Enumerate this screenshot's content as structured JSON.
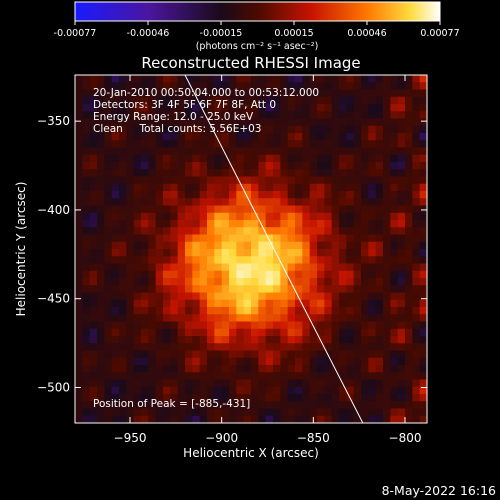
{
  "chart_data": {
    "type": "heatmap",
    "title": "Reconstructed RHESSI Image",
    "xlabel": "Heliocentric X (arcsec)",
    "ylabel": "Heliocentric Y (arcsec)",
    "xlim": [
      -980,
      -788
    ],
    "ylim": [
      -520,
      -324
    ],
    "xticks": [
      -950,
      -900,
      -850,
      -800
    ],
    "yticks": [
      -350,
      -400,
      -450,
      -500
    ],
    "colorbar": {
      "min": -0.00077,
      "max": 0.00077,
      "ticks": [
        "-0.00077",
        "-0.00046",
        "-0.00015",
        "0.00015",
        "0.00046",
        "0.00077"
      ],
      "units_label": "(photons cm⁻² s⁻¹ asec⁻²)",
      "colors": [
        "#1a1aff",
        "#4a16a0",
        "#1a0a1a",
        "#4a0a00",
        "#c81400",
        "#ff7800",
        "#ffdc40",
        "#ffffff"
      ]
    },
    "annotations": {
      "time_range": "20-Jan-2010 00:50:04.000 to 00:53:12.000",
      "detectors": "Detectors: 3F 4F 5F 6F 7F 8F, Att 0",
      "energy": "Energy Range: 12.0 - 25.0 keV",
      "method": "Clean     Total counts: 5.56E+03",
      "peak": "Position of Peak = [-885,-431]"
    },
    "peak": {
      "x": -885,
      "y": -431
    },
    "limb_line": [
      [
        -920,
        -324
      ],
      [
        -823,
        -520
      ]
    ]
  },
  "footer": {
    "date": "8-May-2022 16:16"
  }
}
